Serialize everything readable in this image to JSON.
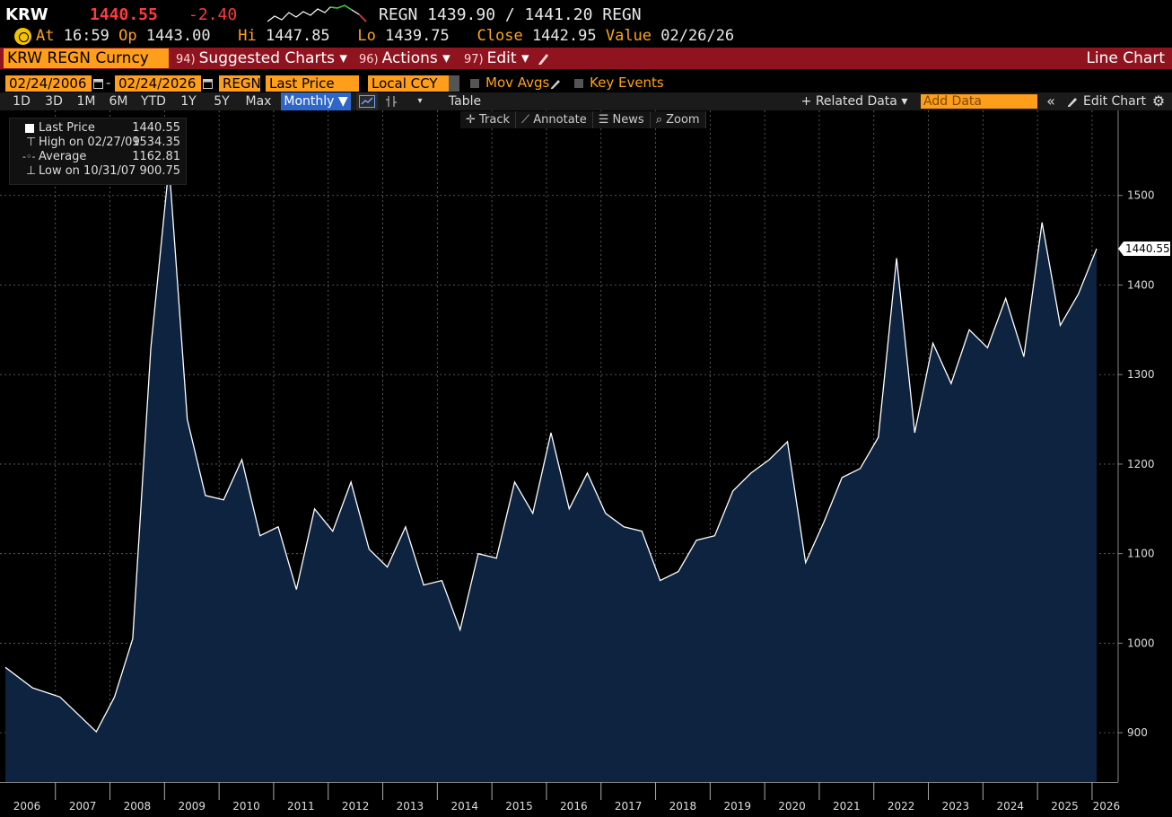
{
  "header": {
    "ticker": "KRW",
    "last": "1440.55",
    "change": "-2.40",
    "bid_ask": "REGN 1439.90 / 1441.20 REGN",
    "at_label": "At",
    "time": "16:59",
    "op_label": "Op",
    "op": "1443.00",
    "hi_label": "Hi",
    "hi": "1447.85",
    "lo_label": "Lo",
    "lo": "1439.75",
    "close_label": "Close",
    "close": "1442.95",
    "value_label": "Value",
    "value_date": "02/26/26"
  },
  "menubar": {
    "security": "KRW REGN Curncy",
    "suggested_num": "94)",
    "suggested": "Suggested Charts ▾",
    "actions_num": "96)",
    "actions": "Actions ▾",
    "edit_num": "97)",
    "edit": "Edit ▾",
    "chart_type": "Line Chart"
  },
  "options": {
    "start_date": "02/24/2006",
    "dash": "-",
    "end_date": "02/24/2026",
    "source": "REGN",
    "field": "Last Price",
    "currency": "Local CCY",
    "mov_avgs": "Mov Avgs",
    "key_events": "Key Events"
  },
  "periods": [
    "1D",
    "3D",
    "1M",
    "6M",
    "YTD",
    "1Y",
    "5Y",
    "Max"
  ],
  "frequency": "Monthly ▼",
  "table_label": "Table",
  "related_data": "+ Related Data ▾",
  "add_data_placeholder": "Add Data",
  "edit_chart": "Edit Chart",
  "tools": [
    "✛ Track",
    "⟋ Annotate",
    "☰ News",
    "⌕ Zoom"
  ],
  "legend": {
    "last_label": "Last Price",
    "last_value": "1440.55",
    "high_label": "High on 02/27/09",
    "high_value": "1534.35",
    "avg_label": "Average",
    "avg_value": "1162.81",
    "low_label": "Low on 10/31/07",
    "low_value": "900.75"
  },
  "colors": {
    "accent_orange": "#ff9e1a",
    "menu_red": "#8f1420",
    "negative": "#ff3b3b",
    "area_fill": "#0d2340",
    "line": "#ffffff"
  },
  "chart_data": {
    "type": "area",
    "frequency": "monthly",
    "series": [
      {
        "name": "Last Price",
        "x": [
          "2006-02",
          "2006-08",
          "2007-02",
          "2007-10",
          "2008-02",
          "2008-06",
          "2008-10",
          "2009-02",
          "2009-06",
          "2009-10",
          "2010-02",
          "2010-06",
          "2010-10",
          "2011-02",
          "2011-06",
          "2011-10",
          "2012-02",
          "2012-06",
          "2012-10",
          "2013-02",
          "2013-06",
          "2013-10",
          "2014-02",
          "2014-06",
          "2014-10",
          "2015-02",
          "2015-06",
          "2015-10",
          "2016-02",
          "2016-06",
          "2016-10",
          "2017-02",
          "2017-06",
          "2017-10",
          "2018-02",
          "2018-06",
          "2018-10",
          "2019-02",
          "2019-06",
          "2019-10",
          "2020-02",
          "2020-06",
          "2020-10",
          "2021-02",
          "2021-06",
          "2021-10",
          "2022-02",
          "2022-06",
          "2022-10",
          "2023-02",
          "2023-06",
          "2023-10",
          "2024-02",
          "2024-06",
          "2024-10",
          "2025-02",
          "2025-06",
          "2025-10",
          "2026-02"
        ],
        "values": [
          973,
          950,
          940,
          901,
          940,
          1005,
          1330,
          1534,
          1250,
          1165,
          1160,
          1205,
          1120,
          1130,
          1060,
          1150,
          1125,
          1180,
          1105,
          1085,
          1130,
          1065,
          1070,
          1015,
          1100,
          1095,
          1180,
          1145,
          1235,
          1150,
          1190,
          1145,
          1130,
          1125,
          1070,
          1080,
          1115,
          1120,
          1170,
          1190,
          1205,
          1225,
          1090,
          1135,
          1185,
          1195,
          1230,
          1430,
          1235,
          1335,
          1290,
          1350,
          1330,
          1385,
          1320,
          1470,
          1355,
          1390,
          1440.55
        ]
      }
    ],
    "x_ticks": [
      "2006",
      "2007",
      "2008",
      "2009",
      "2010",
      "2011",
      "2012",
      "2013",
      "2014",
      "2015",
      "2016",
      "2017",
      "2018",
      "2019",
      "2020",
      "2021",
      "2022",
      "2023",
      "2024",
      "2025",
      "2026"
    ],
    "y_ticks": [
      900,
      1000,
      1100,
      1200,
      1300,
      1400,
      1500
    ],
    "ylim": [
      845,
      1595
    ],
    "last_value_label": "1440.55",
    "grid": true
  }
}
